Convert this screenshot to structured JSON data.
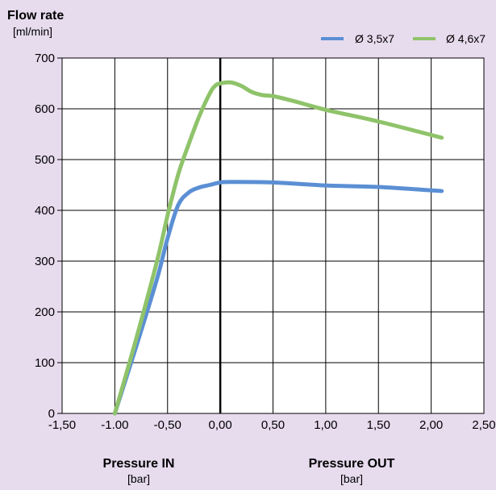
{
  "chart_data": {
    "type": "line",
    "y_title": "Flow rate",
    "y_unit": "[ml/min]",
    "x_left_title": "Pressure IN",
    "x_left_unit": "[bar]",
    "x_right_title": "Pressure OUT",
    "x_right_unit": "[bar]",
    "xlim": [
      -1.5,
      2.5
    ],
    "ylim": [
      0,
      700
    ],
    "x_ticks": [
      -1.5,
      -1.0,
      -0.5,
      0.0,
      0.5,
      1.0,
      1.5,
      2.0,
      2.5
    ],
    "x_tick_labels": [
      "-1,50",
      "-1.00",
      "-0,50",
      "0,00",
      "0,50",
      "1,00",
      "1,50",
      "2,00",
      "2,50"
    ],
    "y_ticks": [
      0,
      100,
      200,
      300,
      400,
      500,
      600,
      700
    ],
    "y_tick_labels": [
      "0",
      "100",
      "200",
      "300",
      "400",
      "500",
      "600",
      "700"
    ],
    "grid": true,
    "legend_position": "top-right",
    "series": [
      {
        "name": "Ø 3,5x7",
        "color": "#5b8fd4",
        "x": [
          -1.0,
          -0.8,
          -0.6,
          -0.5,
          -0.4,
          -0.3,
          -0.2,
          -0.1,
          0.0,
          0.1,
          0.5,
          1.0,
          1.5,
          2.1
        ],
        "y": [
          0,
          130,
          265,
          345,
          410,
          435,
          445,
          450,
          455,
          456,
          455,
          449,
          446,
          438
        ]
      },
      {
        "name": "Ø 4,6x7",
        "color": "#8fc36a",
        "x": [
          -1.0,
          -0.8,
          -0.6,
          -0.5,
          -0.4,
          -0.3,
          -0.2,
          -0.1,
          -0.05,
          0.0,
          0.1,
          0.2,
          0.3,
          0.4,
          0.5,
          0.7,
          1.0,
          1.5,
          2.1
        ],
        "y": [
          0,
          145,
          300,
          390,
          470,
          530,
          585,
          630,
          645,
          650,
          652,
          645,
          633,
          627,
          625,
          615,
          598,
          575,
          543
        ]
      }
    ]
  }
}
